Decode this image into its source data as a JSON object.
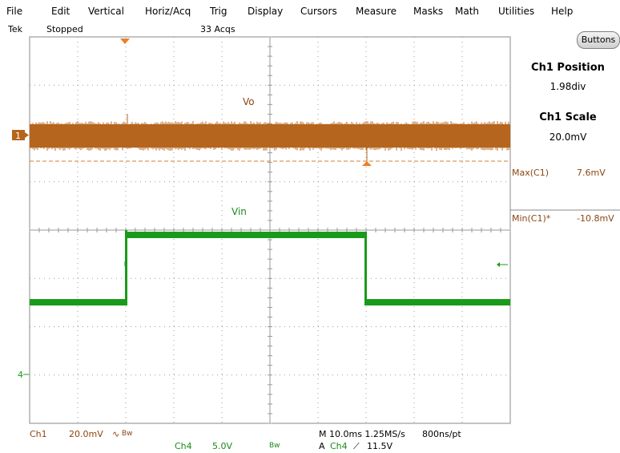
{
  "menu": [
    "File",
    "Edit",
    "Vertical",
    "Horiz/Acq",
    "Trig",
    "Display",
    "Cursors",
    "Measure",
    "Masks",
    "Math",
    "Utilities",
    "Help"
  ],
  "status": {
    "brand": "Tek",
    "state": "Stopped",
    "acqs": "33 Acqs"
  },
  "buttons_label": "Buttons",
  "panel": {
    "position_title": "Ch1 Position",
    "position_value": "1.98div",
    "scale_title": "Ch1 Scale",
    "scale_value": "20.0mV",
    "max_label": "Max(C1)",
    "max_value": "7.6mV",
    "min_label": "Min(C1)*",
    "min_value": "-10.8mV"
  },
  "traces": {
    "ch1_label": "Vo",
    "ch4_label": "Vin",
    "ch1_marker": "1",
    "ch4_marker": "4"
  },
  "bottom": {
    "ch1": "Ch1",
    "ch1_scale": "20.0mV",
    "ch1_coupling": "Bw",
    "ch4": "Ch4",
    "ch4_scale": "5.0V",
    "ch4_coupling": "Bw",
    "timebase": "M 10.0ms 1.25MS/s",
    "resolution": "800ns/pt",
    "trigger_prefix": "A",
    "trigger_source": "Ch4",
    "trigger_level": "11.5V"
  },
  "colors": {
    "ch1": "#b5651d",
    "ch4": "#1a9a1a",
    "grid": "#9a9a9a"
  }
}
